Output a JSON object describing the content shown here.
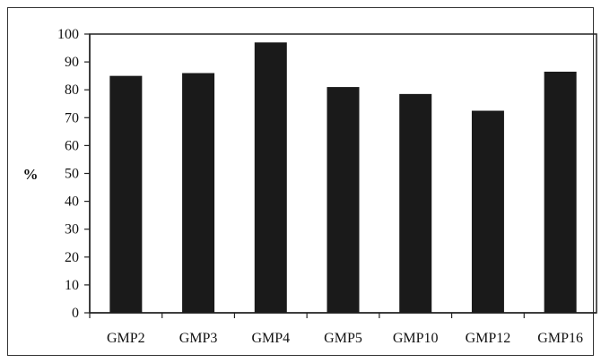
{
  "chart_data": {
    "type": "bar",
    "title": "",
    "xlabel": "",
    "ylabel": "%",
    "ylim": [
      0,
      100
    ],
    "yticks": [
      0,
      10,
      20,
      30,
      40,
      50,
      60,
      70,
      80,
      90,
      100
    ],
    "categories": [
      "GMP2",
      "GMP3",
      "GMP4",
      "GMP5",
      "GMP10",
      "GMP12",
      "GMP16"
    ],
    "values": [
      85,
      86,
      97,
      81,
      78.5,
      72.5,
      86.5
    ],
    "grid": false,
    "bar_color": "#1a1a1a"
  }
}
